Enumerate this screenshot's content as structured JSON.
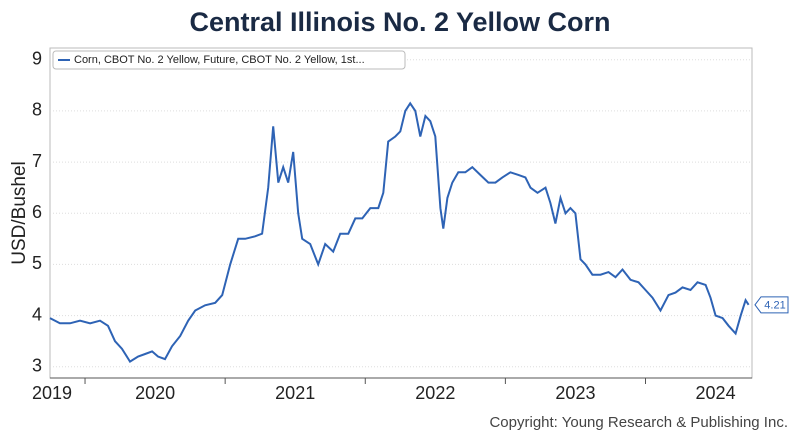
{
  "chart_data": {
    "type": "line",
    "title": "Central Illinois No. 2 Yellow Corn",
    "ylabel": "USD/Bushel",
    "annotation": "Copyright: Young Research & Publishing Inc.",
    "legend": "upper left",
    "grid": true,
    "x": [
      2019.75,
      2019.821,
      2019.893,
      2019.964,
      2020.036,
      2020.107,
      2020.164,
      2020.214,
      2020.264,
      2020.321,
      2020.379,
      2020.429,
      2020.479,
      2020.521,
      2020.571,
      2020.621,
      2020.679,
      2020.736,
      2020.786,
      2020.857,
      2020.929,
      2020.979,
      2021.036,
      2021.093,
      2021.143,
      2021.214,
      2021.264,
      2021.307,
      2021.343,
      2021.379,
      2021.414,
      2021.45,
      2021.486,
      2021.521,
      2021.55,
      2021.607,
      2021.664,
      2021.714,
      2021.771,
      2021.821,
      2021.879,
      2021.929,
      2021.979,
      2022.036,
      2022.093,
      2022.129,
      2022.164,
      2022.214,
      2022.25,
      2022.286,
      2022.321,
      2022.357,
      2022.393,
      2022.429,
      2022.464,
      2022.5,
      2022.536,
      2022.557,
      2022.586,
      2022.621,
      2022.664,
      2022.714,
      2022.764,
      2022.821,
      2022.879,
      2022.929,
      2022.979,
      2023.036,
      2023.093,
      2023.143,
      2023.179,
      2023.229,
      2023.286,
      2023.321,
      2023.357,
      2023.393,
      2023.429,
      2023.464,
      2023.5,
      2023.536,
      2023.571,
      2023.621,
      2023.679,
      2023.736,
      2023.786,
      2023.836,
      2023.893,
      2023.95,
      2024.0,
      2024.05,
      2024.107,
      2024.164,
      2024.214,
      2024.264,
      2024.321,
      2024.371,
      2024.429,
      2024.464,
      2024.5,
      2024.55,
      2024.593,
      2024.643,
      2024.679,
      2024.714,
      2024.736
    ],
    "series": [
      {
        "name": "Corn, CBOT No. 2 Yellow, Future, CBOT No. 2 Yellow, 1st...",
        "color": "#2e63b5",
        "values": [
          3.95,
          3.85,
          3.85,
          3.9,
          3.85,
          3.9,
          3.8,
          3.5,
          3.35,
          3.1,
          3.2,
          3.25,
          3.3,
          3.2,
          3.15,
          3.4,
          3.6,
          3.9,
          4.1,
          4.2,
          4.25,
          4.4,
          5.0,
          5.5,
          5.5,
          5.55,
          5.6,
          6.5,
          7.7,
          6.6,
          6.9,
          6.6,
          7.2,
          6.0,
          5.5,
          5.4,
          5.0,
          5.4,
          5.25,
          5.6,
          5.6,
          5.9,
          5.9,
          6.1,
          6.1,
          6.4,
          7.4,
          7.5,
          7.6,
          8.0,
          8.15,
          8.0,
          7.5,
          7.9,
          7.8,
          7.5,
          6.1,
          5.7,
          6.3,
          6.6,
          6.8,
          6.8,
          6.9,
          6.75,
          6.6,
          6.6,
          6.7,
          6.8,
          6.75,
          6.7,
          6.5,
          6.4,
          6.5,
          6.2,
          5.8,
          6.3,
          6.0,
          6.1,
          6.0,
          5.1,
          5.0,
          4.8,
          4.8,
          4.85,
          4.75,
          4.9,
          4.7,
          4.65,
          4.5,
          4.35,
          4.1,
          4.4,
          4.45,
          4.55,
          4.5,
          4.65,
          4.6,
          4.35,
          4.0,
          3.95,
          3.8,
          3.65,
          4.0,
          4.3,
          4.21
        ]
      }
    ],
    "xlim": [
      2019.75,
      2024.76
    ],
    "xticks": [
      2019,
      2020,
      2021,
      2022,
      2023,
      2024
    ],
    "ylim": [
      2.78,
      9.23
    ],
    "yticks": [
      3,
      4,
      5,
      6,
      7,
      8,
      9
    ]
  }
}
